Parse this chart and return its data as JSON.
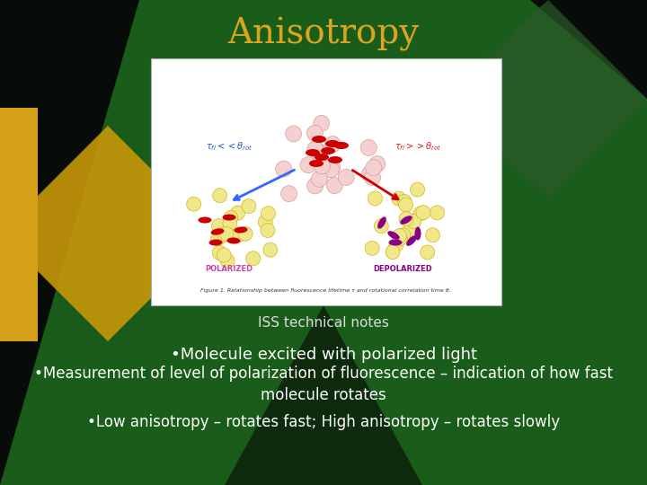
{
  "title": "Anisotropy",
  "title_color": "#DAA520",
  "title_fontsize": 28,
  "bg_color_main": "#1a5c1a",
  "bg_color_dark": "#060e06",
  "bullet_color": "#ffffff",
  "iss_note": "ISS technical notes",
  "iss_fontsize": 11,
  "bullets": [
    "•Molecule excited with polarized light",
    "•Measurement of level of polarization of fluorescence – indication of how fast\nmolecule rotates",
    "•Low anisotropy – rotates fast; High anisotropy – rotates slowly"
  ],
  "bullet_fontsizes": [
    13,
    12,
    12
  ],
  "gold_bar_color": "#D4A017",
  "dark_bg": "#0a0e0a",
  "diamond_left_gold": "#C8980A",
  "diamond_right_green": "#2d5e2d",
  "diamond_bottom_dark_green": "#1a3d1a"
}
